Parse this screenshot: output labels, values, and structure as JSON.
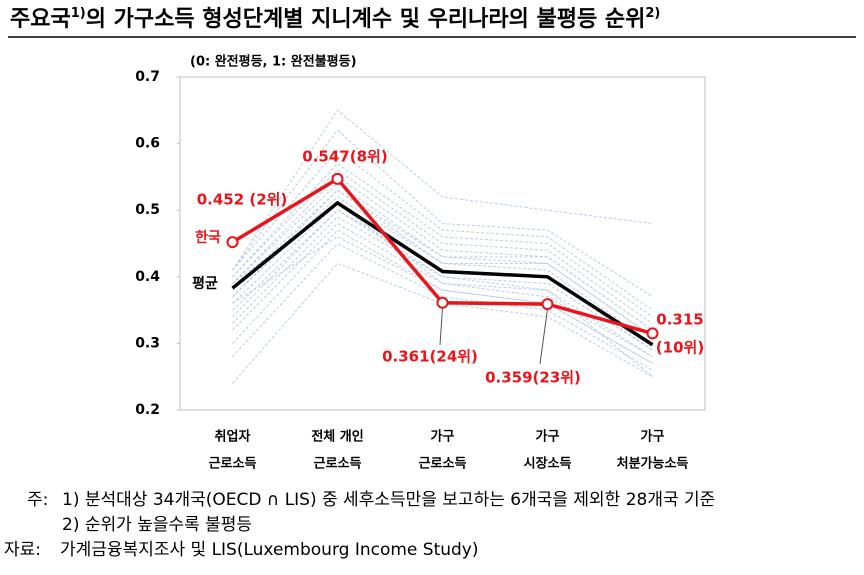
{
  "chart_data": {
    "type": "line",
    "title": [
      "주요국",
      "1)",
      "의 가구소득 형성단계별 지니계수 및 우리나라의 불평등 순위",
      "2)"
    ],
    "subtitle": "(0: 완전평등, 1: 완전불평등)",
    "categories": [
      [
        "취업자",
        "근로소득"
      ],
      [
        "전체 개인",
        "근로소득"
      ],
      [
        "가구",
        "근로소득"
      ],
      [
        "가구",
        "시장소득"
      ],
      [
        "가구",
        "처분가능소득"
      ]
    ],
    "ylim": [
      0.2,
      0.7
    ],
    "yticks": [
      0.2,
      0.3,
      0.4,
      0.5,
      0.6,
      0.7
    ],
    "series": [
      {
        "name": "한국",
        "color": "#e8151b",
        "values": [
          0.452,
          0.547,
          0.361,
          0.359,
          0.315
        ],
        "value_labels": [
          "0.452 (2위)",
          "0.547(8위)",
          "0.361(24위)",
          "0.359(23위)",
          [
            "0.315",
            "(10위)"
          ]
        ]
      },
      {
        "name": "평균",
        "color": "#000000",
        "values": [
          0.383,
          0.511,
          0.408,
          0.4,
          0.298
        ]
      }
    ],
    "other_countries": {
      "color": "#b8cde8",
      "values": [
        [
          0.24,
          0.42,
          0.36,
          0.34,
          0.25
        ],
        [
          0.28,
          0.45,
          0.37,
          0.35,
          0.26
        ],
        [
          0.3,
          0.47,
          0.38,
          0.36,
          0.27
        ],
        [
          0.32,
          0.48,
          0.39,
          0.37,
          0.28
        ],
        [
          0.33,
          0.49,
          0.4,
          0.38,
          0.28
        ],
        [
          0.34,
          0.5,
          0.4,
          0.39,
          0.29
        ],
        [
          0.35,
          0.5,
          0.41,
          0.4,
          0.29
        ],
        [
          0.36,
          0.51,
          0.41,
          0.4,
          0.3
        ],
        [
          0.37,
          0.52,
          0.42,
          0.41,
          0.3
        ],
        [
          0.37,
          0.53,
          0.42,
          0.42,
          0.31
        ],
        [
          0.38,
          0.53,
          0.43,
          0.42,
          0.31
        ],
        [
          0.39,
          0.54,
          0.43,
          0.43,
          0.32
        ],
        [
          0.39,
          0.55,
          0.44,
          0.43,
          0.32
        ],
        [
          0.4,
          0.56,
          0.45,
          0.44,
          0.33
        ],
        [
          0.4,
          0.57,
          0.46,
          0.45,
          0.34
        ],
        [
          0.41,
          0.59,
          0.47,
          0.46,
          0.35
        ],
        [
          0.41,
          0.62,
          0.48,
          0.47,
          0.37
        ],
        [
          0.41,
          0.65,
          0.52,
          0.5,
          0.48
        ],
        [
          0.36,
          0.46,
          0.38,
          0.36,
          0.27
        ],
        [
          0.39,
          0.51,
          0.39,
          0.38,
          0.25
        ]
      ]
    },
    "notes": [
      [
        "주:",
        "1) 분석대상 34개국(OECD ∩ LIS) 중 세후소득만을 보고하는 6개국을 제외한 28개국 기준"
      ],
      [
        "",
        "2) 순위가 높을수록 불평등"
      ],
      [
        "자료:",
        "가계금융복지조사 및 LIS(Luxembourg Income Study)"
      ]
    ]
  }
}
